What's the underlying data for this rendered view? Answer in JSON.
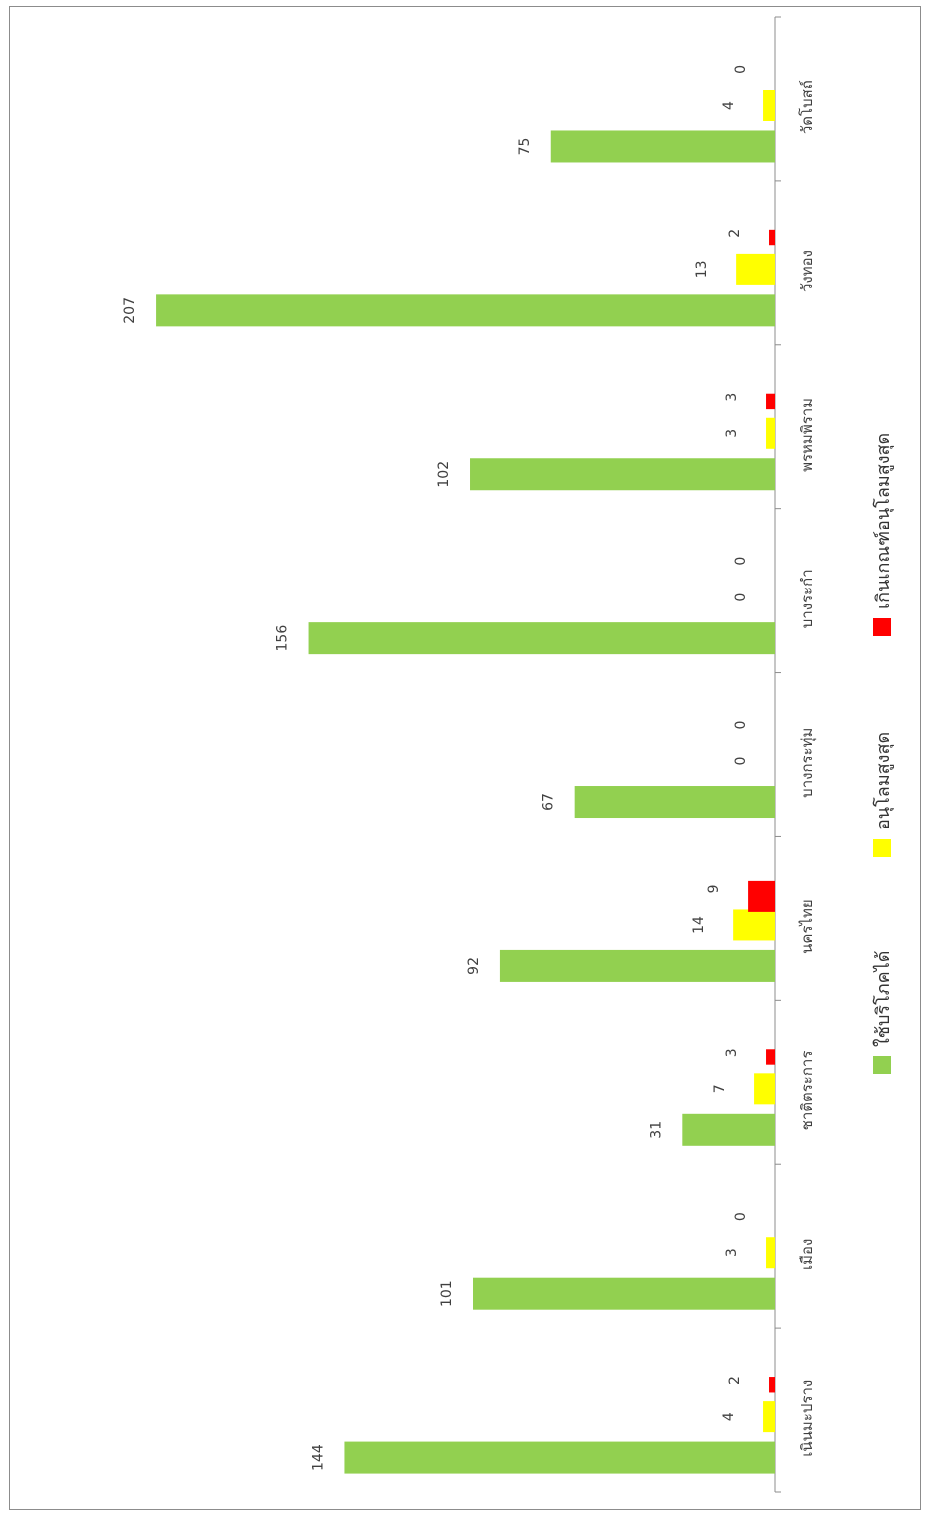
{
  "chart_data": {
    "type": "bar",
    "orientation": "horizontal",
    "categories": [
      "เนินมะปราง",
      "เมือง",
      "ชาติตระการ",
      "นครไทย",
      "บางกระทุ่ม",
      "บางระกำ",
      "พรหมพิราม",
      "วังทอง",
      "วัดโบสถ์"
    ],
    "series": [
      {
        "name": "ใช้บริโภคได้",
        "color": "#92d050",
        "values": [
          144,
          101,
          31,
          92,
          67,
          156,
          102,
          207,
          75
        ]
      },
      {
        "name": "อนุโลมสูงสุด",
        "color": "#ffff00",
        "values": [
          4,
          3,
          7,
          14,
          0,
          0,
          3,
          13,
          4
        ]
      },
      {
        "name": "เกินเกณฑ์อนุโลมสูงสุด",
        "color": "#ff0000",
        "values": [
          2,
          0,
          3,
          9,
          0,
          0,
          3,
          2,
          0
        ]
      }
    ],
    "xlim": [
      0,
      210
    ],
    "grid": false,
    "legend_position": "bottom",
    "title": "",
    "xlabel": "",
    "ylabel": ""
  }
}
